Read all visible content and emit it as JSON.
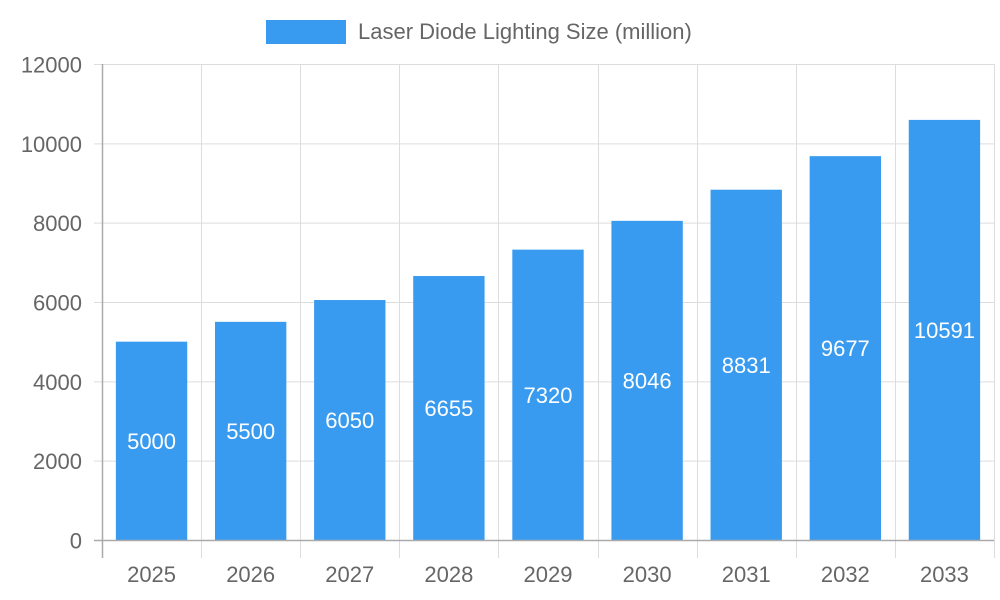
{
  "chart_data": {
    "type": "bar",
    "title": "",
    "xlabel": "",
    "ylabel": "",
    "categories": [
      "2025",
      "2026",
      "2027",
      "2028",
      "2029",
      "2030",
      "2031",
      "2032",
      "2033"
    ],
    "series": [
      {
        "name": "Laser Diode Lighting Size (million)",
        "values": [
          5000,
          5500,
          6050,
          6655,
          7320,
          8046,
          8831,
          9677,
          10591
        ],
        "color": "#399BEF"
      }
    ],
    "ylim": [
      0,
      12000
    ],
    "yticks": [
      "0",
      "2000",
      "4000",
      "6000",
      "8000",
      "10000",
      "12000"
    ],
    "grid": true,
    "legend": "top-center",
    "data_labels": true
  }
}
